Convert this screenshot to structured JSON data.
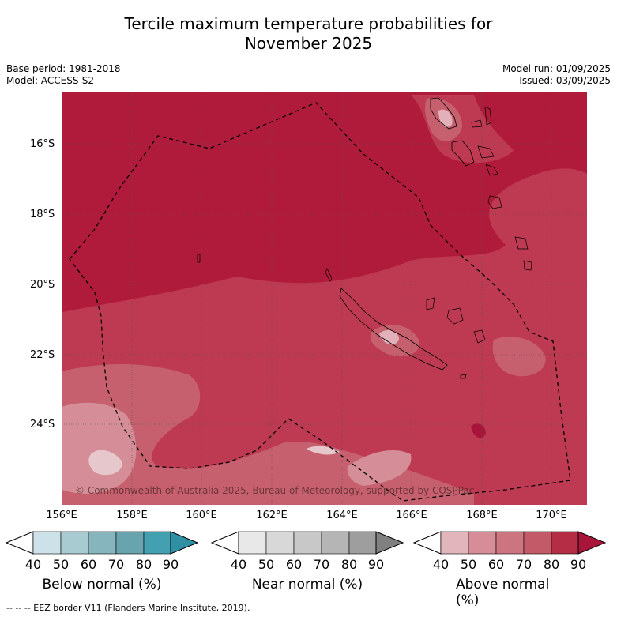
{
  "title_line1": "Tercile maximum temperature probabilities for",
  "title_line2": "November 2025",
  "meta_left": {
    "base_period": "Base period: 1981-2018",
    "model": "Model: ACCESS-S2"
  },
  "meta_right": {
    "model_run": "Model run: 01/09/2025",
    "issued": "Issued: 03/09/2025"
  },
  "map": {
    "lat_labels": [
      "16°S",
      "18°S",
      "20°S",
      "22°S",
      "24°S"
    ],
    "lon_labels": [
      "156°E",
      "158°E",
      "160°E",
      "162°E",
      "164°E",
      "166°E",
      "168°E",
      "170°E"
    ],
    "copyright": "© Commonwealth of Australia 2025, Bureau of Meteorology, supported by COSPPac"
  },
  "colorbars": [
    {
      "title": "Below normal (%)",
      "ticks": [
        "40",
        "50",
        "60",
        "70",
        "80",
        "90"
      ],
      "colors": [
        "#ffffff",
        "#cce2e8",
        "#a8cbd1",
        "#87b5bd",
        "#68a4ae",
        "#43a0b0",
        "#2f8fa3"
      ]
    },
    {
      "title": "Near normal (%)",
      "ticks": [
        "40",
        "50",
        "60",
        "70",
        "80",
        "90"
      ],
      "colors": [
        "#ffffff",
        "#e8e8e8",
        "#d8d8d8",
        "#c8c8c8",
        "#b5b5b5",
        "#9e9e9e",
        "#808080"
      ]
    },
    {
      "title": "Above normal (%)",
      "ticks": [
        "40",
        "50",
        "60",
        "70",
        "80",
        "90"
      ],
      "colors": [
        "#ffffff",
        "#e2b4bc",
        "#d68d98",
        "#cc7580",
        "#c25a68",
        "#b52d45",
        "#a8143a"
      ]
    }
  ],
  "footnote": "--  --  -- EEZ border V11 (Flanders Marine Institute, 2019)."
}
